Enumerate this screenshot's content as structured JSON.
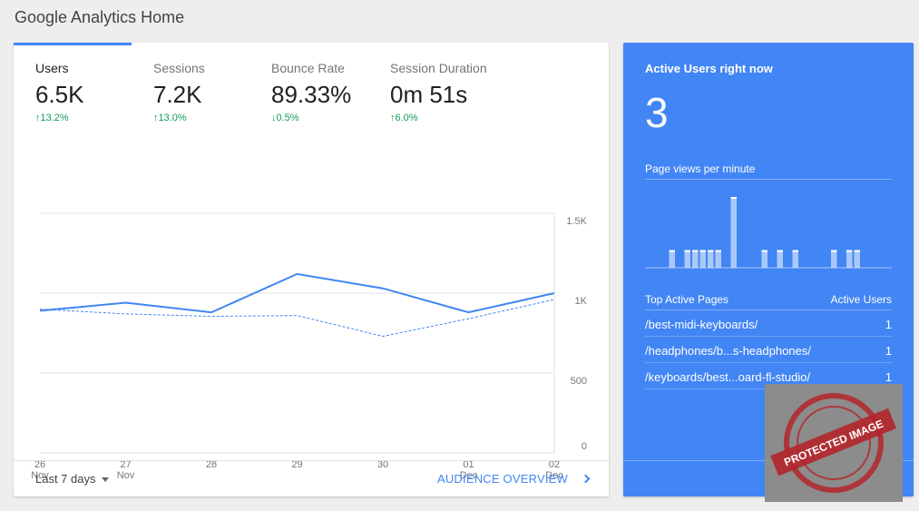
{
  "page_title": "Google Analytics Home",
  "metrics": [
    {
      "label": "Users",
      "value": "6.5K",
      "change": "↑13.2%",
      "active": true
    },
    {
      "label": "Sessions",
      "value": "7.2K",
      "change": "↑13.0%"
    },
    {
      "label": "Bounce Rate",
      "value": "89.33%",
      "change": "↓0.5%"
    },
    {
      "label": "Session Duration",
      "value": "0m 51s",
      "change": "↑6.0%"
    }
  ],
  "chart_data": {
    "type": "line",
    "x": [
      "26 Nov",
      "27 Nov",
      "28",
      "29",
      "30",
      "01 Dec",
      "02 Dec"
    ],
    "x_tick_labels": [
      [
        "26",
        "Nov"
      ],
      [
        "27",
        "Nov"
      ],
      [
        "28",
        ""
      ],
      [
        "29",
        ""
      ],
      [
        "30",
        ""
      ],
      [
        "01",
        "Dec"
      ],
      [
        "02",
        "Dec"
      ]
    ],
    "y_tick_labels": [
      "1.5K",
      "1K",
      "500",
      "0"
    ],
    "y_ticks": [
      1500,
      1000,
      500,
      0
    ],
    "ylim": [
      0,
      1500
    ],
    "series": [
      {
        "style": "solid",
        "color": "#4285f4",
        "values": [
          890,
          940,
          880,
          1120,
          1030,
          880,
          1000
        ]
      },
      {
        "style": "dashed",
        "color": "#4285f4",
        "values": [
          900,
          870,
          855,
          860,
          730,
          840,
          960
        ]
      }
    ]
  },
  "footer": {
    "range_label": "Last 7 days",
    "overview_label": "AUDIENCE OVERVIEW"
  },
  "realtime": {
    "title": "Active Users right now",
    "count": "3",
    "subtitle": "Page views per minute",
    "pageviews_per_minute": [
      0,
      0,
      0,
      1,
      0,
      1,
      1,
      1,
      1,
      1,
      0,
      4,
      0,
      0,
      0,
      1,
      0,
      1,
      0,
      1,
      0,
      0,
      0,
      0,
      1,
      0,
      1,
      1,
      0,
      0,
      0,
      0
    ],
    "col_page": "Top Active Pages",
    "col_users": "Active Users",
    "pages": [
      {
        "path": "/best-midi-keyboards/",
        "users": "1"
      },
      {
        "path": "/headphones/b...s-headphones/",
        "users": "1"
      },
      {
        "path": "/keyboards/best...oard-fl-studio/",
        "users": "1"
      }
    ]
  },
  "stamp_text": "PROTECTED IMAGE"
}
